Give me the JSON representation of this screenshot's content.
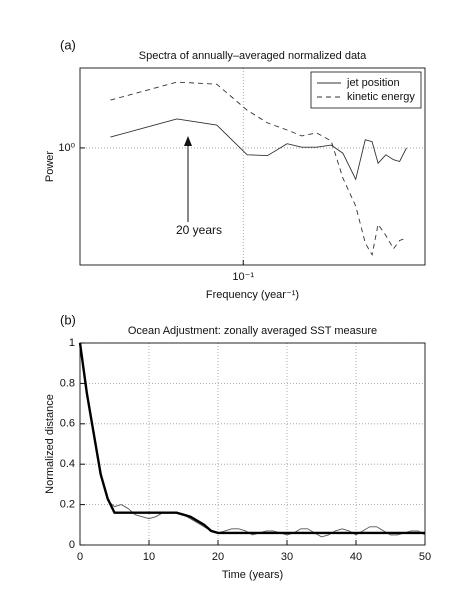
{
  "chart_data": [
    {
      "type": "line",
      "label": "(a)",
      "title": "Spectra of annually–averaged normalized data",
      "xlabel": "Frequency (year⁻¹)",
      "ylabel": "Power",
      "annotation": "20 years",
      "xscale": "log",
      "yscale": "log",
      "grid": true,
      "legend": "upper right",
      "xlim": [
        0.02,
        0.6
      ],
      "ylim": [
        0.2,
        3
      ],
      "xticks": [
        {
          "value": 0.1,
          "label": "10⁻¹"
        }
      ],
      "yticks": [
        {
          "value": 1,
          "label": "10⁰"
        }
      ],
      "x": [
        0.027,
        0.052,
        0.077,
        0.104,
        0.127,
        0.154,
        0.178,
        0.206,
        0.238,
        0.267,
        0.303,
        0.333,
        0.356,
        0.378,
        0.408,
        0.44,
        0.467,
        0.5
      ],
      "series": [
        {
          "name": "jet position",
          "color": "#333333",
          "linestyle": "solid",
          "weight": "normal",
          "values": [
            1.16,
            1.49,
            1.37,
            0.91,
            0.9,
            1.06,
            1.01,
            1.01,
            1.04,
            0.93,
            0.65,
            1.12,
            1.09,
            0.81,
            0.91,
            0.85,
            0.83,
            1.0
          ]
        },
        {
          "name": "kinetic energy",
          "color": "#333333",
          "linestyle": "dashed",
          "weight": "normal",
          "values": [
            1.93,
            2.47,
            2.4,
            1.68,
            1.41,
            1.28,
            1.18,
            1.23,
            1.1,
            0.66,
            0.45,
            0.27,
            0.23,
            0.35,
            0.3,
            0.25,
            0.28,
            0.29
          ]
        }
      ]
    },
    {
      "type": "line",
      "label": "(b)",
      "title": "Ocean Adjustment: zonally averaged SST measure",
      "xlabel": "Time (years)",
      "ylabel": "Normalized distance",
      "grid": true,
      "xlim": [
        0,
        50
      ],
      "ylim": [
        0,
        1
      ],
      "xticks": [
        0,
        10,
        20,
        30,
        40,
        50
      ],
      "yticks": [
        0,
        0.2,
        0.4,
        0.6,
        0.8,
        1
      ],
      "x": [
        0,
        1,
        2,
        3,
        4,
        5,
        6,
        7,
        8,
        9,
        10,
        11,
        12,
        13,
        14,
        15,
        16,
        17,
        18,
        19,
        20,
        21,
        22,
        23,
        24,
        25,
        26,
        27,
        28,
        29,
        30,
        31,
        32,
        33,
        34,
        35,
        36,
        37,
        38,
        39,
        40,
        41,
        42,
        43,
        44,
        45,
        46,
        47,
        48,
        49,
        50
      ],
      "series": [
        {
          "color": "#555555",
          "linestyle": "solid",
          "weight": "normal",
          "values": [
            1,
            0.75,
            0.55,
            0.35,
            0.22,
            0.19,
            0.2,
            0.18,
            0.15,
            0.14,
            0.13,
            0.14,
            0.16,
            0.16,
            0.16,
            0.15,
            0.13,
            0.11,
            0.09,
            0.07,
            0.06,
            0.07,
            0.08,
            0.08,
            0.07,
            0.05,
            0.06,
            0.07,
            0.07,
            0.06,
            0.05,
            0.06,
            0.08,
            0.08,
            0.06,
            0.04,
            0.05,
            0.07,
            0.08,
            0.07,
            0.05,
            0.07,
            0.09,
            0.09,
            0.07,
            0.05,
            0.05,
            0.06,
            0.07,
            0.07,
            0.05
          ]
        },
        {
          "color": "#000000",
          "linestyle": "solid",
          "weight": "bold",
          "values": [
            1,
            0.75,
            0.55,
            0.35,
            0.23,
            0.16,
            0.16,
            0.16,
            0.16,
            0.16,
            0.16,
            0.16,
            0.16,
            0.16,
            0.16,
            0.15,
            0.14,
            0.12,
            0.1,
            0.07,
            0.06,
            0.06,
            0.06,
            0.06,
            0.06,
            0.06,
            0.06,
            0.06,
            0.06,
            0.06,
            0.06,
            0.06,
            0.06,
            0.06,
            0.06,
            0.06,
            0.06,
            0.06,
            0.06,
            0.06,
            0.06,
            0.06,
            0.06,
            0.06,
            0.06,
            0.06,
            0.06,
            0.06,
            0.06,
            0.06,
            0.06
          ]
        }
      ]
    }
  ]
}
